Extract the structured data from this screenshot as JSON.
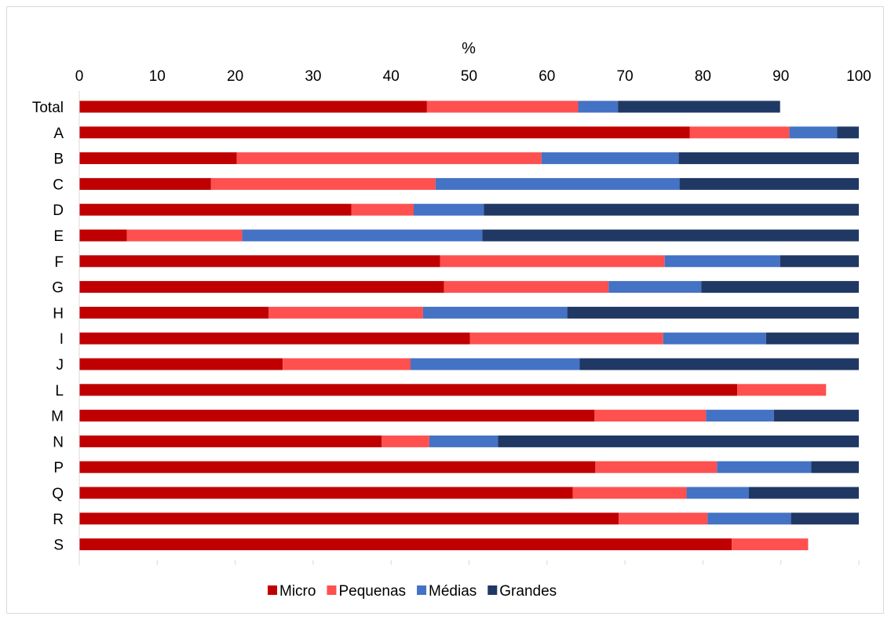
{
  "chart_data": {
    "type": "bar",
    "orientation": "horizontal",
    "stacked": true,
    "xlabel": "%",
    "xlim": [
      0,
      100
    ],
    "x_ticks": [
      "0",
      "10",
      "20",
      "30",
      "40",
      "50",
      "60",
      "70",
      "80",
      "90",
      "100"
    ],
    "x_axis_position": "top",
    "grid": false,
    "legend_position": "bottom",
    "categories": [
      "Total",
      "A",
      "B",
      "C",
      "D",
      "E",
      "F",
      "G",
      "H",
      "I",
      "J",
      "L",
      "M",
      "N",
      "P",
      "Q",
      "R",
      "S"
    ],
    "series": [
      {
        "name": "Micro",
        "color": "#C00000",
        "values": [
          44.6,
          78.3,
          20.2,
          16.9,
          34.9,
          6.1,
          46.3,
          46.8,
          24.3,
          50.1,
          26.1,
          84.4,
          66.1,
          38.8,
          66.2,
          63.3,
          69.2,
          83.7
        ]
      },
      {
        "name": "Pequenas",
        "color": "#FF5050",
        "values": [
          19.4,
          12.8,
          39.1,
          28.8,
          8.0,
          14.8,
          28.8,
          21.1,
          19.8,
          24.8,
          16.4,
          11.4,
          14.3,
          6.1,
          15.6,
          14.6,
          11.4,
          9.8
        ]
      },
      {
        "name": "Médias",
        "color": "#4472C4",
        "values": [
          5.1,
          6.1,
          17.6,
          31.3,
          9.0,
          30.8,
          14.8,
          11.9,
          18.5,
          13.2,
          21.7,
          0,
          8.7,
          8.8,
          12.1,
          8.0,
          10.7,
          0
        ]
      },
      {
        "name": "Grandes",
        "color": "#203864",
        "values": [
          20.8,
          2.8,
          23.1,
          23.0,
          48.1,
          48.3,
          10.1,
          20.2,
          37.4,
          11.9,
          35.8,
          0,
          10.9,
          46.3,
          6.1,
          14.1,
          8.7,
          0
        ]
      }
    ]
  }
}
